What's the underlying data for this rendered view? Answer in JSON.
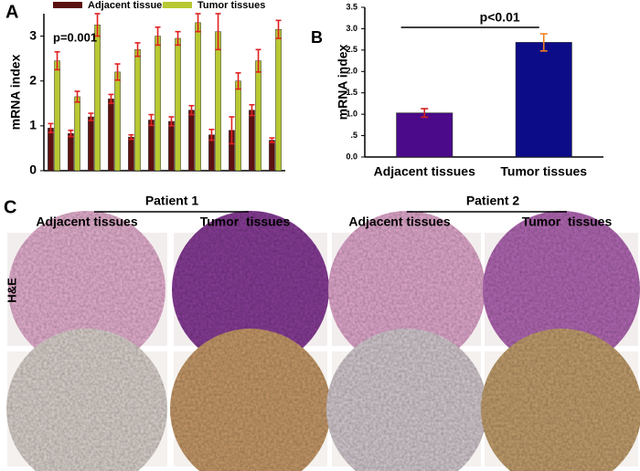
{
  "chart_data": [
    {
      "type": "bar",
      "panel": "A",
      "y_label": "mRNA index",
      "annotation": "p=0.001",
      "categories": [
        null,
        null,
        null,
        null,
        null,
        null,
        null,
        null,
        null,
        null,
        null,
        null
      ],
      "series": [
        {
          "name": "Adjacent tissues",
          "color": "#5c1010",
          "values": [
            0.95,
            0.83,
            1.2,
            1.6,
            0.75,
            1.13,
            1.1,
            1.35,
            0.8,
            0.9,
            1.35,
            0.68
          ],
          "errors": [
            0.1,
            0.07,
            0.08,
            0.1,
            0.05,
            0.12,
            0.1,
            0.1,
            0.12,
            0.3,
            0.12,
            0.05
          ]
        },
        {
          "name": "Tumor  tissues",
          "color": "#b8c832",
          "values": [
            2.45,
            1.65,
            3.25,
            2.2,
            2.7,
            3.0,
            2.95,
            3.3,
            3.1,
            2.0,
            2.45,
            3.15
          ],
          "errors": [
            0.2,
            0.12,
            0.25,
            0.18,
            0.15,
            0.2,
            0.15,
            0.2,
            0.4,
            0.18,
            0.25,
            0.2
          ]
        }
      ],
      "error_color": "#e02020",
      "ylim": [
        0,
        3.5
      ],
      "yticks": [
        0,
        1,
        2,
        3
      ],
      "grid": false,
      "legend": "top"
    },
    {
      "type": "bar",
      "panel": "B",
      "y_label": "mRNA  index",
      "annotation": "p<0.01",
      "categories": [
        "Adjacent tissues",
        "Tumor  tissues"
      ],
      "values": [
        1.03,
        2.68
      ],
      "errors": [
        0.1,
        0.2
      ],
      "colors": [
        "#4a0a8a",
        "#0c0c88"
      ],
      "error_colors": [
        "#d02020",
        "#f08020"
      ],
      "ylim": [
        0,
        3.5
      ],
      "yticks": [
        {
          "value": 0,
          "label": "0.0"
        },
        {
          "value": 0.5,
          "label": ".5"
        },
        {
          "value": 1,
          "label": "1.0"
        },
        {
          "value": 1.5,
          "label": "1.5"
        },
        {
          "value": 2,
          "label": "2.0"
        },
        {
          "value": 2.5,
          "label": "2.5"
        },
        {
          "value": 3,
          "label": "3.0"
        },
        3.5
      ],
      "grid": false
    }
  ],
  "panel_c": {
    "label": "C",
    "stain": "H&E",
    "patients": [
      {
        "name": "Patient 1",
        "columns": [
          "Adjacent tissues",
          "Tumor  tissues"
        ]
      },
      {
        "name": "Patient 2",
        "columns": [
          "Adjacent tissues",
          "Tumor  tissues"
        ]
      }
    ]
  }
}
